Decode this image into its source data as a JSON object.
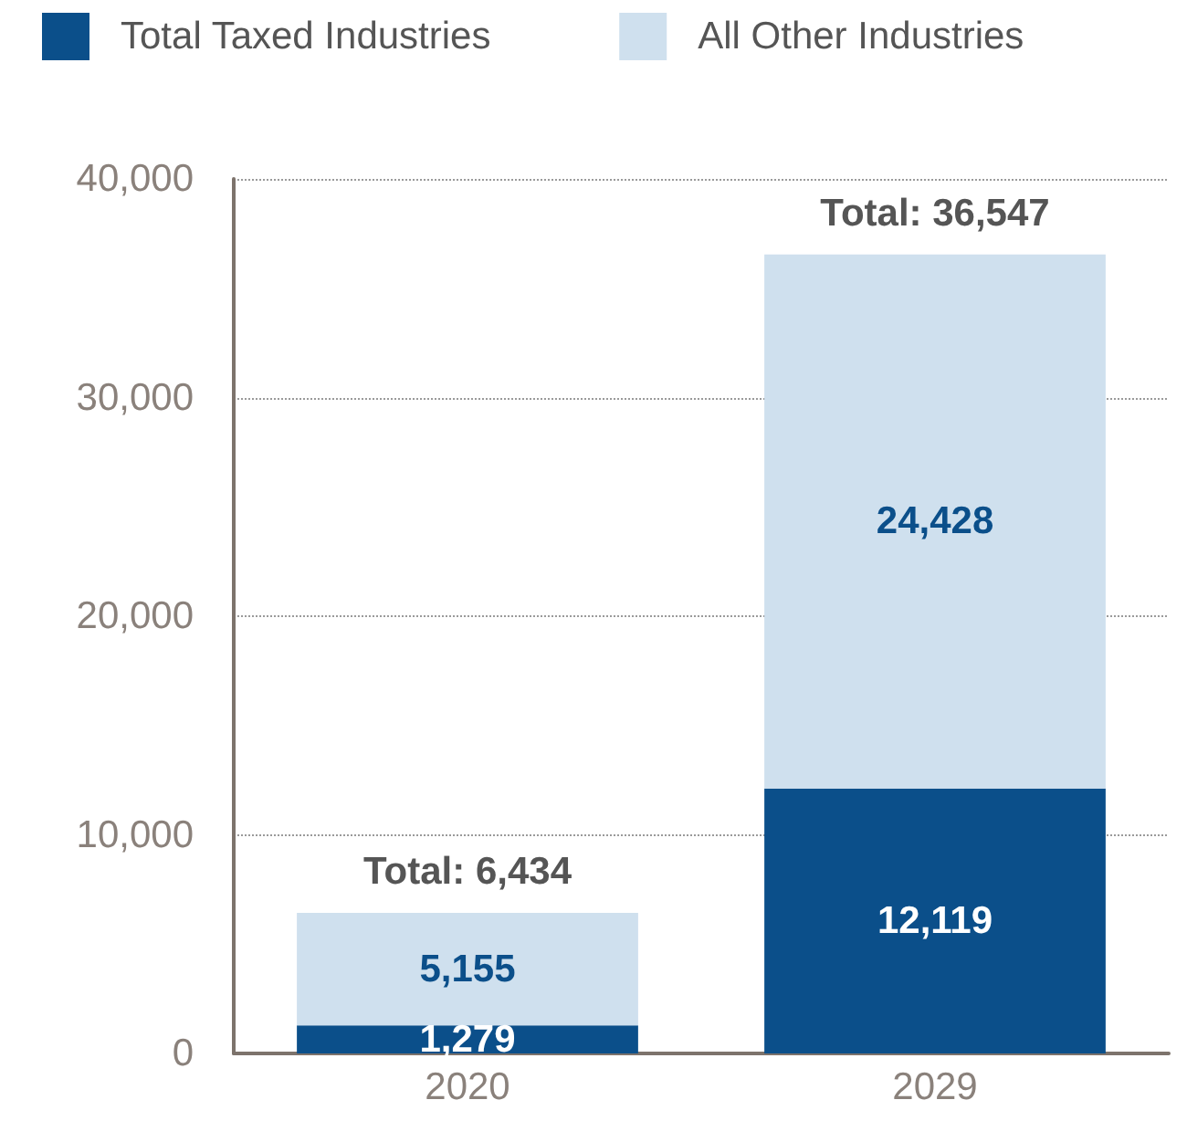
{
  "chart_data": {
    "type": "bar",
    "stacked": true,
    "categories": [
      "2020",
      "2029"
    ],
    "series": [
      {
        "name": "Total Taxed Industries",
        "color": "#0b4f8a",
        "values": [
          1279,
          12119
        ],
        "value_labels": [
          "1,279",
          "12,119"
        ]
      },
      {
        "name": "All Other Industries",
        "color": "#cfe0ee",
        "values": [
          5155,
          24428
        ],
        "value_labels": [
          "5,155",
          "24,428"
        ]
      }
    ],
    "totals": [
      "Total: 6,434",
      "Total: 36,547"
    ],
    "ylim": [
      0,
      40000
    ],
    "yticks": [
      {
        "value": 0,
        "label": "0"
      },
      {
        "value": 10000,
        "label": "10,000"
      },
      {
        "value": 20000,
        "label": "20,000"
      },
      {
        "value": 30000,
        "label": "30,000"
      },
      {
        "value": 40000,
        "label": "40,000"
      }
    ],
    "grid": "y",
    "legend": "top left"
  }
}
